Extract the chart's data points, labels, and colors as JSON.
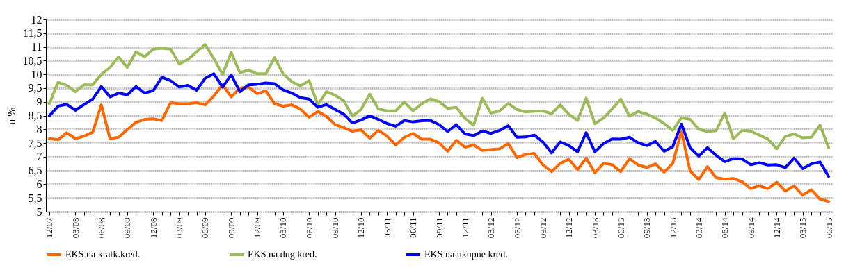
{
  "chart_data": {
    "type": "line",
    "ylabel": "u %",
    "categories": [
      "12/07",
      null,
      null,
      "03/08",
      null,
      null,
      "06/08",
      null,
      null,
      "09/08",
      null,
      null,
      "12/08",
      null,
      null,
      "03/09",
      null,
      null,
      "06/09",
      null,
      null,
      "09/09",
      null,
      null,
      "12/09",
      null,
      null,
      "03/10",
      null,
      null,
      "06/10",
      null,
      null,
      "09/10",
      null,
      null,
      "12/10",
      null,
      null,
      "03/11",
      null,
      null,
      "06/11",
      null,
      null,
      "09/11",
      null,
      null,
      "12/11",
      null,
      null,
      "03/12",
      null,
      null,
      "06/12",
      null,
      null,
      "09/12",
      null,
      null,
      "12/12",
      null,
      null,
      "03/13",
      null,
      null,
      "06/13",
      null,
      null,
      "09/13",
      null,
      null,
      "12/13",
      null,
      null,
      "03/14",
      null,
      null,
      "06/14",
      null,
      null,
      "09/14",
      null,
      null,
      "12/14",
      null,
      null,
      "03/15",
      null,
      null,
      "06/15"
    ],
    "series": [
      {
        "name": "EKS na kratk.kred.",
        "color": "#ff6600",
        "values": [
          7.66,
          7.62,
          7.87,
          7.66,
          7.75,
          7.89,
          8.89,
          7.66,
          7.71,
          7.99,
          8.25,
          8.36,
          8.38,
          8.32,
          8.97,
          8.93,
          8.93,
          8.97,
          8.89,
          9.22,
          9.62,
          9.18,
          9.5,
          9.54,
          9.3,
          9.4,
          8.93,
          8.84,
          8.89,
          8.73,
          8.44,
          8.65,
          8.47,
          8.17,
          8.06,
          7.93,
          7.98,
          7.68,
          7.96,
          7.75,
          7.43,
          7.71,
          7.85,
          7.64,
          7.64,
          7.51,
          7.2,
          7.6,
          7.35,
          7.43,
          7.23,
          7.26,
          7.29,
          7.48,
          6.97,
          7.08,
          7.12,
          6.71,
          6.46,
          6.76,
          6.91,
          6.53,
          6.95,
          6.42,
          6.76,
          6.71,
          6.46,
          6.93,
          6.7,
          6.61,
          6.74,
          6.44,
          6.76,
          7.92,
          6.49,
          6.17,
          6.64,
          6.24,
          6.18,
          6.21,
          6.09,
          5.84,
          5.94,
          5.84,
          6.07,
          5.75,
          5.94,
          5.6,
          5.8,
          5.46,
          5.37
        ]
      },
      {
        "name": "EKS na dug.kred.",
        "color": "#9bbb59",
        "values": [
          8.93,
          9.71,
          9.6,
          9.37,
          9.62,
          9.62,
          10.0,
          10.25,
          10.64,
          10.25,
          10.82,
          10.64,
          10.92,
          10.95,
          10.92,
          10.38,
          10.54,
          10.82,
          11.09,
          10.57,
          10.0,
          10.8,
          10.06,
          10.16,
          10.02,
          10.02,
          10.61,
          10.02,
          9.73,
          9.58,
          9.77,
          8.89,
          9.37,
          9.24,
          9.04,
          8.48,
          8.72,
          9.28,
          8.74,
          8.67,
          8.67,
          8.99,
          8.67,
          8.93,
          9.11,
          9.01,
          8.76,
          8.8,
          8.4,
          8.15,
          9.13,
          8.59,
          8.67,
          8.94,
          8.72,
          8.63,
          8.66,
          8.67,
          8.57,
          8.89,
          8.55,
          8.32,
          9.14,
          8.2,
          8.41,
          8.74,
          9.1,
          8.48,
          8.65,
          8.55,
          8.41,
          8.21,
          7.96,
          8.42,
          8.36,
          8.0,
          7.92,
          7.95,
          8.59,
          7.65,
          7.96,
          7.93,
          7.79,
          7.64,
          7.29,
          7.74,
          7.83,
          7.69,
          7.71,
          8.15,
          7.33
        ]
      },
      {
        "name": "EKS na ukupne kred.",
        "color": "#0000ff",
        "values": [
          8.49,
          8.84,
          8.91,
          8.69,
          8.9,
          9.1,
          9.56,
          9.18,
          9.32,
          9.25,
          9.56,
          9.32,
          9.41,
          9.9,
          9.77,
          9.54,
          9.6,
          9.42,
          9.86,
          10.02,
          9.54,
          9.98,
          9.37,
          9.62,
          9.64,
          9.69,
          9.66,
          9.43,
          9.32,
          9.15,
          9.1,
          8.8,
          8.9,
          8.72,
          8.55,
          8.23,
          8.34,
          8.49,
          8.36,
          8.21,
          8.11,
          8.32,
          8.27,
          8.31,
          8.32,
          8.17,
          7.92,
          8.17,
          7.83,
          7.77,
          7.94,
          7.85,
          7.96,
          8.13,
          7.71,
          7.72,
          7.79,
          7.54,
          7.14,
          7.54,
          7.41,
          7.18,
          7.88,
          7.18,
          7.48,
          7.65,
          7.64,
          7.71,
          7.51,
          7.41,
          7.56,
          7.2,
          7.37,
          8.19,
          7.33,
          7.02,
          7.33,
          7.05,
          6.82,
          6.93,
          6.92,
          6.71,
          6.78,
          6.7,
          6.71,
          6.6,
          6.95,
          6.57,
          6.74,
          6.81,
          6.28
        ]
      }
    ],
    "ylim": [
      5,
      12
    ],
    "yticks": [
      5,
      {
        "value": 5.5,
        "label": "5,5"
      },
      6,
      {
        "value": 6.5,
        "label": "6,5"
      },
      7,
      {
        "value": 7.5,
        "label": "7,5"
      },
      8,
      {
        "value": 8.5,
        "label": "8,5"
      },
      9,
      {
        "value": 9.5,
        "label": "9,5"
      },
      10,
      {
        "value": 10.5,
        "label": "10,5"
      },
      11,
      {
        "value": 11.5,
        "label": "11,5"
      },
      12
    ],
    "grid": "y",
    "legend": "bottom"
  }
}
